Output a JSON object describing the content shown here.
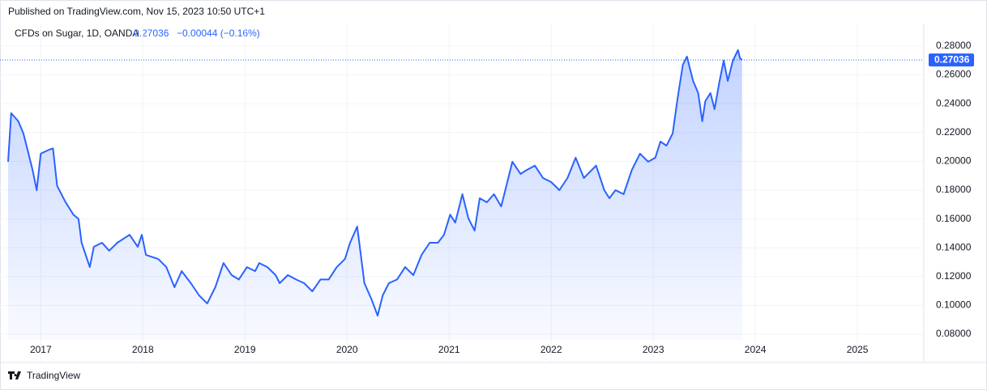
{
  "published": "Published on TradingView.com, Nov 15, 2023 10:50 UTC+1",
  "footer": "TradingView",
  "chart_data": {
    "type": "area",
    "title": "CFDs on Sugar, 1D, OANDA",
    "change": "−0.00044 (−0.16%)",
    "color": "#2962ff",
    "grid": true,
    "xlim": [
      2016.68,
      2025.65
    ],
    "ylim": [
      0.0761,
      0.2867
    ],
    "xticks": [
      2017,
      2018,
      2019,
      2020,
      2021,
      2022,
      2023,
      2024,
      2025
    ],
    "yticks": [
      {
        "value": 0.08,
        "label": "0.08000"
      },
      {
        "value": 0.1,
        "label": "0.10000"
      },
      {
        "value": 0.12,
        "label": "0.12000"
      },
      {
        "value": 0.14,
        "label": "0.14000"
      },
      {
        "value": 0.16,
        "label": "0.16000"
      },
      {
        "value": 0.18,
        "label": "0.18000"
      },
      {
        "value": 0.2,
        "label": "0.20000"
      },
      {
        "value": 0.22,
        "label": "0.22000"
      },
      {
        "value": 0.24,
        "label": "0.24000"
      },
      {
        "value": 0.26,
        "label": "0.26000"
      },
      {
        "value": 0.28,
        "label": "0.28000"
      }
    ],
    "x": [
      2016.68,
      2016.71,
      2016.78,
      2016.83,
      2016.88,
      2016.92,
      2016.96,
      2017.0,
      2017.08,
      2017.12,
      2017.16,
      2017.24,
      2017.32,
      2017.37,
      2017.4,
      2017.48,
      2017.52,
      2017.6,
      2017.67,
      2017.75,
      2017.87,
      2017.95,
      2017.99,
      2018.03,
      2018.15,
      2018.23,
      2018.31,
      2018.38,
      2018.47,
      2018.55,
      2018.63,
      2018.71,
      2018.79,
      2018.87,
      2018.94,
      2019.02,
      2019.1,
      2019.14,
      2019.22,
      2019.3,
      2019.34,
      2019.42,
      2019.5,
      2019.58,
      2019.66,
      2019.74,
      2019.82,
      2019.9,
      2019.98,
      2020.03,
      2020.1,
      2020.13,
      2020.17,
      2020.24,
      2020.3,
      2020.35,
      2020.41,
      2020.49,
      2020.57,
      2020.65,
      2020.73,
      2020.81,
      2020.89,
      2020.95,
      2021.01,
      2021.06,
      2021.13,
      2021.19,
      2021.25,
      2021.3,
      2021.37,
      2021.44,
      2021.51,
      2021.56,
      2021.62,
      2021.7,
      2021.76,
      2021.84,
      2021.92,
      2022.0,
      2022.08,
      2022.16,
      2022.24,
      2022.32,
      2022.44,
      2022.52,
      2022.57,
      2022.63,
      2022.71,
      2022.79,
      2022.87,
      2022.95,
      2023.02,
      2023.07,
      2023.13,
      2023.19,
      2023.24,
      2023.29,
      2023.33,
      2023.39,
      2023.44,
      2023.48,
      2023.51,
      2023.56,
      2023.6,
      2023.65,
      2023.69,
      2023.73,
      2023.78,
      2023.83,
      2023.85,
      2023.87
    ],
    "values": [
      0.1997,
      0.2334,
      0.2278,
      0.2193,
      0.2053,
      0.194,
      0.18,
      0.2053,
      0.208,
      0.209,
      0.183,
      0.172,
      0.163,
      0.16,
      0.1435,
      0.1266,
      0.1407,
      0.1435,
      0.138,
      0.1435,
      0.149,
      0.1407,
      0.149,
      0.135,
      0.1322,
      0.1266,
      0.1126,
      0.1238,
      0.1154,
      0.107,
      0.1013,
      0.1126,
      0.1294,
      0.121,
      0.118,
      0.1266,
      0.1238,
      0.1294,
      0.1266,
      0.121,
      0.1154,
      0.121,
      0.118,
      0.1154,
      0.1098,
      0.118,
      0.118,
      0.1266,
      0.1322,
      0.1435,
      0.1547,
      0.138,
      0.1154,
      0.1042,
      0.0929,
      0.107,
      0.1154,
      0.118,
      0.1266,
      0.121,
      0.135,
      0.1435,
      0.1435,
      0.149,
      0.163,
      0.1575,
      0.1772,
      0.1603,
      0.1519,
      0.1744,
      0.1716,
      0.1772,
      0.1687,
      0.1828,
      0.1997,
      0.1913,
      0.194,
      0.197,
      0.1884,
      0.1856,
      0.18,
      0.1884,
      0.2025,
      0.1884,
      0.197,
      0.18,
      0.1744,
      0.18,
      0.1772,
      0.194,
      0.2053,
      0.1997,
      0.2025,
      0.2137,
      0.2109,
      0.2193,
      0.2446,
      0.2671,
      0.2727,
      0.2558,
      0.2474,
      0.2278,
      0.2418,
      0.2474,
      0.2362,
      0.2558,
      0.2699,
      0.2558,
      0.2699,
      0.2772,
      0.2716,
      0.27036
    ]
  }
}
